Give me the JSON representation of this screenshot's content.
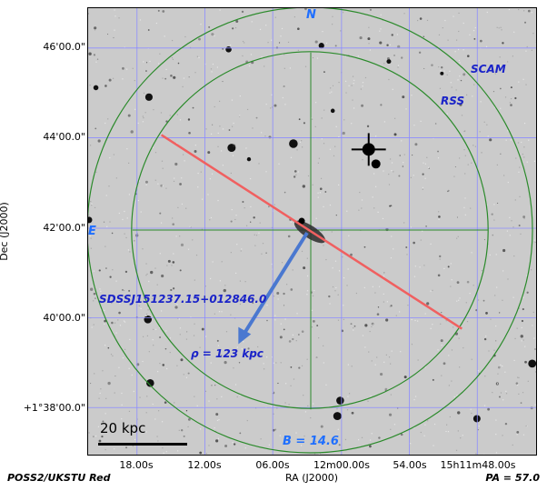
{
  "plot": {
    "y_axis_title": "Dec (J2000)",
    "x_axis_title": "RA (J2000)",
    "y_ticks": [
      "46'00.0\"",
      "44'00.0\"",
      "42'00.0\"",
      "40'00.0\"",
      "+1°38'00.0\""
    ],
    "x_ticks": [
      "18.00s",
      "12.00s",
      "06.00s",
      "12m00.00s",
      "54.00s",
      "15h11m48.00s"
    ],
    "survey_label": "POSS2/UKSTU Red",
    "pa_label": "PA = 57.0"
  },
  "annotations": {
    "north": "N",
    "east": "E",
    "scam": "SCAM",
    "rss": "RSS",
    "target": "SDSSJ151237.15+012846.0",
    "rho": "ρ  = 123 kpc",
    "b_mag": "B = 14.6",
    "scale": "20 kpc"
  },
  "colors": {
    "grid": "#8c8cff",
    "circles": "#2a8a2a",
    "slit": "#f06060",
    "arrow": "#4a78d0",
    "label_light": "#1f6fff",
    "label_dark": "#1a23c8"
  }
}
